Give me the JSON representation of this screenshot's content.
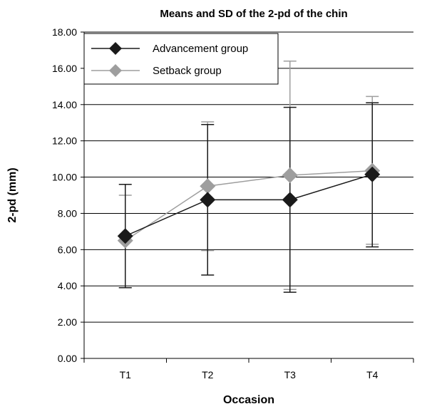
{
  "chart_data": {
    "type": "line",
    "title": "Means and SD of the 2-pd of the chin",
    "xlabel": "Occasion",
    "ylabel": "2-pd (mm)",
    "categories": [
      "T1",
      "T2",
      "T3",
      "T4"
    ],
    "ylim": [
      0,
      18
    ],
    "yticks": [
      "0.00",
      "2.00",
      "4.00",
      "6.00",
      "8.00",
      "10.00",
      "12.00",
      "14.00",
      "16.00",
      "18.00"
    ],
    "grid": true,
    "legend_position": "top-left",
    "series": [
      {
        "name": "Advancement group",
        "color": "#1a1a1a",
        "marker": "diamond",
        "values": [
          6.75,
          8.75,
          8.75,
          10.15
        ],
        "sd_low": [
          3.9,
          4.6,
          3.65,
          6.15
        ],
        "sd_high": [
          9.6,
          12.9,
          13.85,
          14.1
        ]
      },
      {
        "name": "Setback group",
        "color": "#9e9e9e",
        "marker": "diamond",
        "values": [
          6.5,
          9.5,
          10.1,
          10.35
        ],
        "sd_low": [
          3.9,
          5.95,
          3.8,
          6.3
        ],
        "sd_high": [
          9.0,
          13.05,
          16.4,
          14.45
        ]
      }
    ]
  }
}
